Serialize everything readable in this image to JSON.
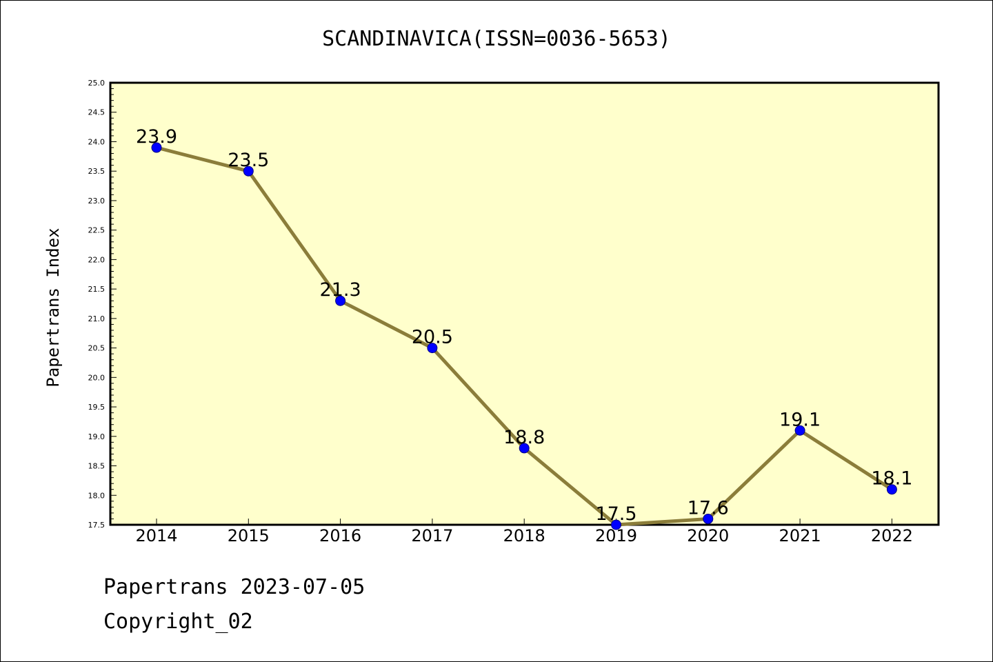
{
  "colors": {
    "plot_background": "#ffffcc",
    "line": "#8b7d3a",
    "marker": "#0000ff",
    "marker_edge": "#000080"
  },
  "footer": {
    "date_line": "Papertrans 2023-07-05",
    "copyright": "Copyright_02"
  },
  "chart_data": {
    "type": "line",
    "title": "SCANDINAVICA(ISSN=0036-5653)",
    "xlabel": "",
    "ylabel": "Papertrans Index",
    "categories": [
      "2014",
      "2015",
      "2016",
      "2017",
      "2018",
      "2019",
      "2020",
      "2021",
      "2022"
    ],
    "series": [
      {
        "values": [
          23.9,
          23.5,
          21.3,
          20.5,
          18.8,
          17.5,
          17.6,
          19.1,
          18.1
        ],
        "data_labels": [
          "23.9",
          "23.5",
          "21.3",
          "20.5",
          "18.8",
          "17.5",
          "17.6",
          "19.1",
          "18.1"
        ]
      }
    ],
    "ylim": [
      17.5,
      25.0
    ],
    "yticks": [
      "17.5",
      "18.0",
      "18.5",
      "19.0",
      "19.5",
      "20.0",
      "20.5",
      "21.0",
      "21.5",
      "22.0",
      "22.5",
      "23.0",
      "23.5",
      "24.0",
      "24.5",
      "25.0"
    ],
    "grid": false,
    "legend": "none"
  }
}
